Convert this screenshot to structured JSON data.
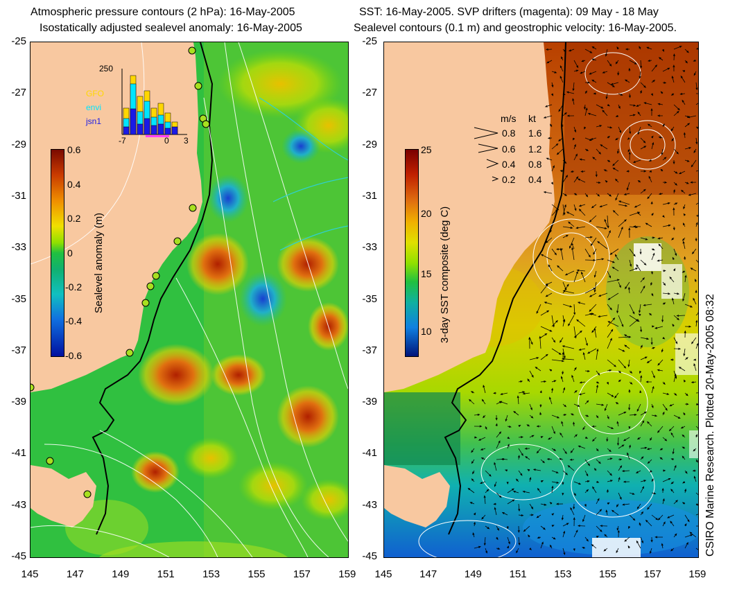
{
  "left_panel": {
    "title_line1": "Atmospheric pressure contours (2 hPa): 16-May-2005",
    "title_line2": "Isostatically adjusted sealevel anomaly: 16-May-2005",
    "colorbar": {
      "label": "Sealevel anomaly (m)",
      "ticks": [
        "0.6",
        "0.4",
        "0.2",
        "0",
        "-0.2",
        "-0.4",
        "-0.6"
      ]
    },
    "histogram": {
      "ymax_label": "250",
      "xticks": [
        "-7",
        "0",
        "3"
      ],
      "legend": [
        {
          "name": "GFO",
          "color": "#ffd700"
        },
        {
          "name": "envi",
          "color": "#00e5ff"
        },
        {
          "name": "jsn1",
          "color": "#1a1ae6"
        }
      ]
    }
  },
  "right_panel": {
    "title_line1": "SST: 16-May-2005. SVP drifters (magenta): 09 May - 18 May",
    "title_line2": "Sealevel contours (0.1 m) and geostrophic velocity: 16-May-2005.",
    "colorbar": {
      "label": "3-day SST composite (deg C)",
      "ticks": [
        "25",
        "20",
        "15",
        "10"
      ]
    },
    "velocity_legend": {
      "header_ms": "m/s",
      "header_kt": "kt",
      "rows": [
        {
          "ms": "0.8",
          "kt": "1.6"
        },
        {
          "ms": "0.6",
          "kt": "1.2"
        },
        {
          "ms": "0.4",
          "kt": "0.8"
        },
        {
          "ms": "0.2",
          "kt": "0.4"
        }
      ]
    }
  },
  "axes": {
    "lat_ticks": [
      "-25",
      "-27",
      "-29",
      "-31",
      "-33",
      "-35",
      "-37",
      "-39",
      "-41",
      "-43",
      "-45"
    ],
    "lon_ticks": [
      "145",
      "147",
      "149",
      "151",
      "153",
      "155",
      "157",
      "159"
    ]
  },
  "credit": "CSIRO Marine Research. Plotted 20-May-2005 08:32",
  "colors": {
    "land": "#f8c8a0",
    "sla_low": "#00008b",
    "sla_high": "#8b1a00",
    "sst_low": "#00147a",
    "sst_high": "#7a0000"
  }
}
